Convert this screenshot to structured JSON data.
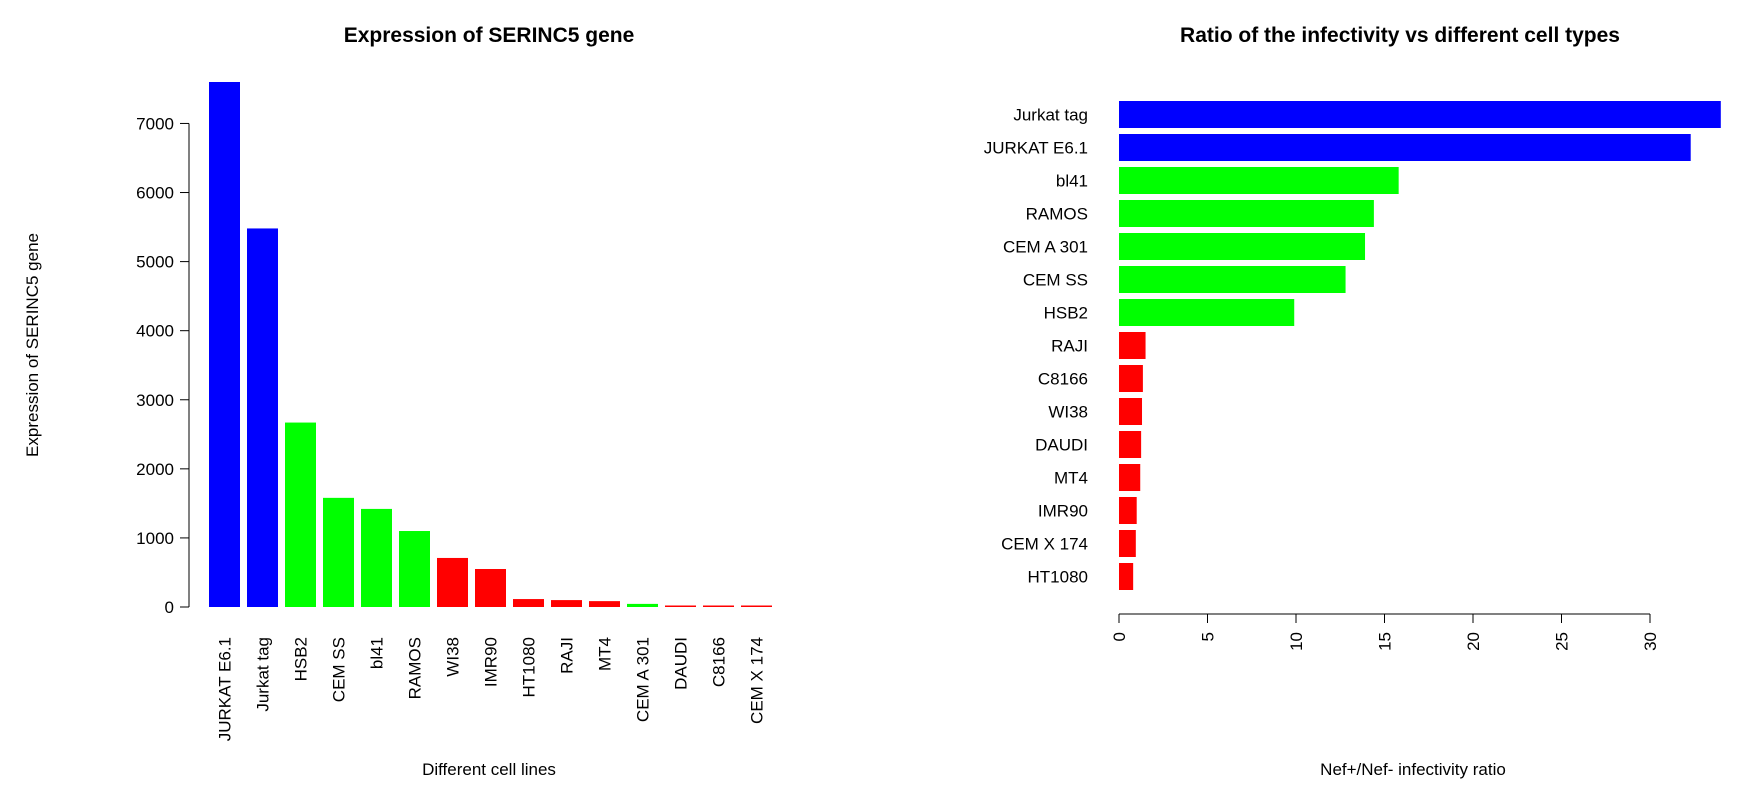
{
  "colors": {
    "high": "#0000ff",
    "mid": "#00ff00",
    "low": "#ff0000"
  },
  "chart_data": [
    {
      "type": "bar",
      "orientation": "vertical",
      "title": "Expression of SERINC5 gene",
      "xlabel": "Different cell lines",
      "ylabel": "Expression of SERINC5 gene",
      "categories": [
        "JURKAT E6.1",
        "Jurkat tag",
        "HSB2",
        "CEM SS",
        "bl41",
        "RAMOS",
        "WI38",
        "IMR90",
        "HT1080",
        "RAJI",
        "MT4",
        "CEM A 301",
        "DAUDI",
        "C8166",
        "CEM X 174"
      ],
      "values": [
        7600,
        5480,
        2670,
        1580,
        1420,
        1100,
        710,
        550,
        115,
        100,
        85,
        45,
        15,
        12,
        10
      ],
      "bar_colors": [
        "#0000ff",
        "#0000ff",
        "#00ff00",
        "#00ff00",
        "#00ff00",
        "#00ff00",
        "#ff0000",
        "#ff0000",
        "#ff0000",
        "#ff0000",
        "#ff0000",
        "#00ff00",
        "#ff0000",
        "#ff0000",
        "#ff0000"
      ],
      "yticks": [
        0,
        1000,
        2000,
        3000,
        4000,
        5000,
        6000,
        7000
      ],
      "ylim": [
        0,
        7600
      ],
      "grid": false,
      "legend": "none"
    },
    {
      "type": "bar",
      "orientation": "horizontal",
      "title": "Ratio of the infectivity vs different cell types",
      "xlabel": "Nef+/Nef- infectivity ratio",
      "ylabel": "",
      "categories": [
        "Jurkat tag",
        "JURKAT E6.1",
        "bl41",
        "RAMOS",
        "CEM A 301",
        "CEM SS",
        "HSB2",
        "RAJI",
        "C8166",
        "WI38",
        "DAUDI",
        "MT4",
        "IMR90",
        "CEM X 174",
        "HT1080"
      ],
      "values": [
        34.0,
        32.3,
        15.8,
        14.4,
        13.9,
        12.8,
        9.9,
        1.5,
        1.35,
        1.3,
        1.25,
        1.2,
        1.0,
        0.95,
        0.8
      ],
      "bar_colors": [
        "#0000ff",
        "#0000ff",
        "#00ff00",
        "#00ff00",
        "#00ff00",
        "#00ff00",
        "#00ff00",
        "#ff0000",
        "#ff0000",
        "#ff0000",
        "#ff0000",
        "#ff0000",
        "#ff0000",
        "#ff0000",
        "#ff0000"
      ],
      "xticks": [
        0,
        5,
        10,
        15,
        20,
        25,
        30
      ],
      "xlim": [
        0,
        34
      ],
      "grid": false,
      "legend": "none"
    }
  ]
}
